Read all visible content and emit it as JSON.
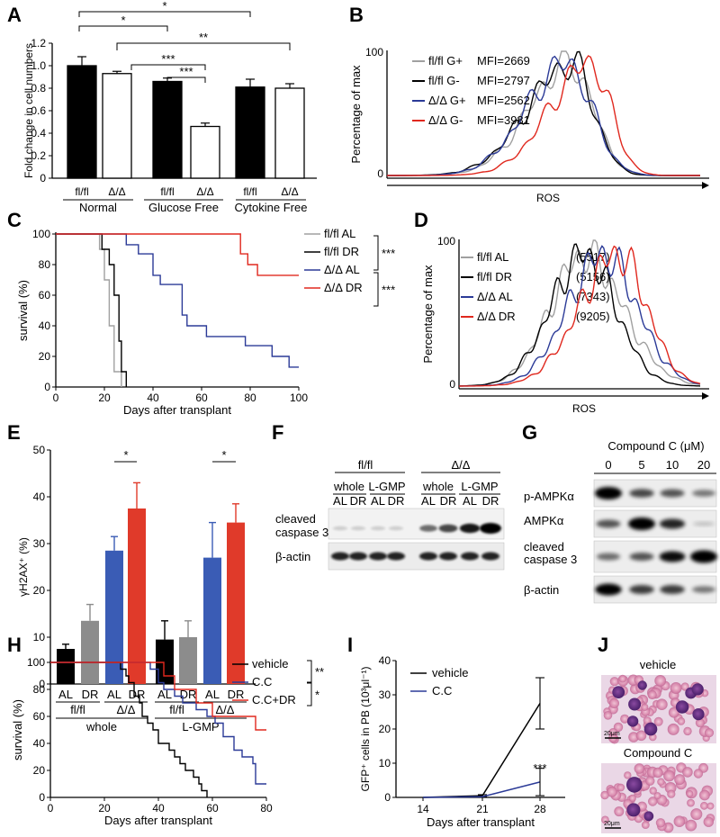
{
  "figure": {
    "panel_labels": [
      "A",
      "B",
      "C",
      "D",
      "E",
      "F",
      "G",
      "H",
      "I",
      "J"
    ]
  },
  "colors": {
    "black": "#000000",
    "gray": "#a0a0a0",
    "blue": "#2b3a97",
    "red": "#e0281e",
    "bar_gray": "#8c8c8c",
    "bar_blue": "#3a5cb5",
    "bar_red": "#e03a2a"
  },
  "chart_data": [
    {
      "id": "A",
      "type": "bar",
      "ylabel": "Fold change in cell numbers",
      "ylim": [
        0,
        1.2
      ],
      "yticks": [
        "0",
        "0.2",
        "0.4",
        "0.6",
        "0.8",
        "1.0",
        "1.2"
      ],
      "categories": [
        "fl/fl",
        "Δ/Δ",
        "fl/fl",
        "Δ/Δ",
        "fl/fl",
        "Δ/Δ"
      ],
      "groups": [
        "Normal",
        "Glucose Free",
        "Cytokine Free"
      ],
      "values": [
        1.0,
        0.93,
        0.86,
        0.46,
        0.81,
        0.8
      ],
      "errors": [
        0.08,
        0.02,
        0.03,
        0.03,
        0.07,
        0.04
      ],
      "fill": [
        "black",
        "white",
        "black",
        "white",
        "black",
        "white"
      ],
      "significance": [
        "*",
        "*",
        "**",
        "***",
        "***"
      ]
    },
    {
      "id": "B",
      "type": "line",
      "ylabel": "Percentage of max",
      "xlabel": "ROS",
      "yticks": [
        "0",
        "100"
      ],
      "series": [
        {
          "name": "fl/fl G+",
          "value": "MFI=2669",
          "color": "gray"
        },
        {
          "name": "fl/fl G-",
          "value": "MFI=2797",
          "color": "black"
        },
        {
          "name": "Δ/Δ G+",
          "value": "MFI=2562",
          "color": "blue"
        },
        {
          "name": "Δ/Δ G-",
          "value": "MFI=3981",
          "color": "red"
        }
      ]
    },
    {
      "id": "C",
      "type": "line",
      "ylabel": "survival (%)",
      "xlabel": "Days after transplant",
      "xlim": [
        0,
        100
      ],
      "ylim": [
        0,
        100
      ],
      "xticks": [
        "0",
        "20",
        "40",
        "60",
        "80",
        "100"
      ],
      "yticks": [
        "0",
        "20",
        "40",
        "60",
        "80",
        "100"
      ],
      "significance": [
        "***",
        "***"
      ],
      "series": [
        {
          "name": "fl/fl AL",
          "color": "gray",
          "steps": [
            [
              0,
              100
            ],
            [
              18,
              100
            ],
            [
              18,
              90
            ],
            [
              20,
              90
            ],
            [
              20,
              70
            ],
            [
              22,
              70
            ],
            [
              22,
              40
            ],
            [
              24,
              40
            ],
            [
              24,
              10
            ],
            [
              27,
              10
            ],
            [
              27,
              0
            ]
          ]
        },
        {
          "name": "fl/fl DR",
          "color": "black",
          "steps": [
            [
              0,
              100
            ],
            [
              19,
              100
            ],
            [
              19,
              90
            ],
            [
              22,
              90
            ],
            [
              22,
              80
            ],
            [
              24,
              80
            ],
            [
              24,
              60
            ],
            [
              26,
              60
            ],
            [
              26,
              30
            ],
            [
              27,
              30
            ],
            [
              27,
              10
            ],
            [
              29,
              10
            ],
            [
              29,
              0
            ]
          ]
        },
        {
          "name": "Δ/Δ AL",
          "color": "blue",
          "steps": [
            [
              0,
              100
            ],
            [
              29,
              100
            ],
            [
              29,
              93
            ],
            [
              34,
              93
            ],
            [
              34,
              87
            ],
            [
              40,
              87
            ],
            [
              40,
              73
            ],
            [
              43,
              73
            ],
            [
              43,
              67
            ],
            [
              52,
              67
            ],
            [
              52,
              47
            ],
            [
              54,
              47
            ],
            [
              54,
              40
            ],
            [
              62,
              40
            ],
            [
              62,
              33
            ],
            [
              78,
              33
            ],
            [
              78,
              27
            ],
            [
              89,
              27
            ],
            [
              89,
              20
            ],
            [
              96,
              20
            ],
            [
              96,
              13
            ],
            [
              100,
              13
            ]
          ]
        },
        {
          "name": "Δ/Δ DR",
          "color": "red",
          "steps": [
            [
              0,
              100
            ],
            [
              76,
              100
            ],
            [
              76,
              87
            ],
            [
              79,
              87
            ],
            [
              79,
              80
            ],
            [
              83,
              80
            ],
            [
              83,
              73
            ],
            [
              100,
              73
            ]
          ]
        }
      ]
    },
    {
      "id": "D",
      "type": "line",
      "ylabel": "Percentage of max",
      "xlabel": "ROS",
      "yticks": [
        "0",
        "100"
      ],
      "series": [
        {
          "name": "fl/fl AL",
          "value": "(5517)",
          "color": "gray"
        },
        {
          "name": "fl/fl DR",
          "value": "(5156)",
          "color": "black"
        },
        {
          "name": "Δ/Δ AL",
          "value": "(7343)",
          "color": "blue"
        },
        {
          "name": "Δ/Δ DR",
          "value": "(9205)",
          "color": "red"
        }
      ]
    },
    {
      "id": "E",
      "type": "bar",
      "ylabel": "γH2AX⁺ (%)",
      "ylim": [
        0,
        50
      ],
      "yticks": [
        "0",
        "10",
        "20",
        "30",
        "40",
        "50"
      ],
      "categories": [
        "AL",
        "DR",
        "AL",
        "DR",
        "AL",
        "DR",
        "AL",
        "DR"
      ],
      "genotypes": [
        "fl/fl",
        "Δ/Δ",
        "fl/fl",
        "Δ/Δ"
      ],
      "groups": [
        "whole",
        "L-GMP"
      ],
      "values": [
        7.5,
        13.5,
        28.5,
        37.5,
        9.5,
        10,
        27,
        34.5
      ],
      "errors": [
        1.0,
        3.5,
        3.0,
        5.5,
        4.0,
        3.5,
        7.5,
        4.0
      ],
      "fill": [
        "black",
        "bar_gray",
        "bar_blue",
        "bar_red",
        "black",
        "bar_gray",
        "bar_blue",
        "bar_red"
      ],
      "significance": [
        "*",
        "*"
      ]
    },
    {
      "id": "H",
      "type": "line",
      "ylabel": "survival (%)",
      "xlabel": "Days after transplant",
      "xlim": [
        0,
        80
      ],
      "ylim": [
        0,
        100
      ],
      "xticks": [
        "0",
        "20",
        "40",
        "60",
        "80"
      ],
      "yticks": [
        "0",
        "20",
        "40",
        "60",
        "80",
        "100"
      ],
      "significance": [
        "**",
        "*"
      ],
      "series": [
        {
          "name": "vehicle",
          "color": "black",
          "steps": [
            [
              0,
              100
            ],
            [
              26,
              100
            ],
            [
              26,
              95
            ],
            [
              28,
              95
            ],
            [
              28,
              90
            ],
            [
              29,
              90
            ],
            [
              29,
              85
            ],
            [
              31,
              85
            ],
            [
              31,
              75
            ],
            [
              33,
              75
            ],
            [
              33,
              70
            ],
            [
              34,
              70
            ],
            [
              34,
              60
            ],
            [
              36,
              60
            ],
            [
              36,
              55
            ],
            [
              38,
              55
            ],
            [
              38,
              50
            ],
            [
              40,
              50
            ],
            [
              40,
              40
            ],
            [
              44,
              40
            ],
            [
              44,
              35
            ],
            [
              46,
              35
            ],
            [
              46,
              30
            ],
            [
              48,
              30
            ],
            [
              48,
              25
            ],
            [
              50,
              25
            ],
            [
              50,
              20
            ],
            [
              53,
              20
            ],
            [
              53,
              15
            ],
            [
              55,
              15
            ],
            [
              55,
              10
            ],
            [
              56,
              10
            ],
            [
              56,
              5
            ],
            [
              58,
              5
            ],
            [
              58,
              0
            ]
          ]
        },
        {
          "name": "C.C",
          "color": "blue",
          "steps": [
            [
              0,
              100
            ],
            [
              37,
              100
            ],
            [
              37,
              95
            ],
            [
              40,
              95
            ],
            [
              40,
              85
            ],
            [
              42,
              85
            ],
            [
              42,
              80
            ],
            [
              46,
              80
            ],
            [
              46,
              75
            ],
            [
              49,
              75
            ],
            [
              49,
              70
            ],
            [
              54,
              70
            ],
            [
              54,
              65
            ],
            [
              58,
              65
            ],
            [
              58,
              60
            ],
            [
              61,
              60
            ],
            [
              61,
              55
            ],
            [
              64,
              55
            ],
            [
              64,
              45
            ],
            [
              68,
              45
            ],
            [
              68,
              35
            ],
            [
              71,
              35
            ],
            [
              71,
              30
            ],
            [
              75,
              30
            ],
            [
              75,
              25
            ],
            [
              76,
              25
            ],
            [
              76,
              10
            ],
            [
              80,
              10
            ]
          ]
        },
        {
          "name": "C.C+DR",
          "color": "red",
          "steps": [
            [
              0,
              100
            ],
            [
              42,
              100
            ],
            [
              42,
              90
            ],
            [
              46,
              90
            ],
            [
              46,
              80
            ],
            [
              54,
              80
            ],
            [
              54,
              70
            ],
            [
              60,
              70
            ],
            [
              60,
              60
            ],
            [
              76,
              60
            ],
            [
              76,
              50
            ],
            [
              80,
              50
            ]
          ]
        }
      ]
    },
    {
      "id": "I",
      "type": "line",
      "ylabel": "GFP⁺ cells in PB (10³μl⁻¹)",
      "xlabel": "Days after transplant",
      "ylim": [
        0,
        40
      ],
      "xticks": [
        "14",
        "21",
        "28"
      ],
      "yticks": [
        "0",
        "10",
        "20",
        "30",
        "40"
      ],
      "significance": [
        "***"
      ],
      "series": [
        {
          "name": "vehicle",
          "color": "black",
          "x": [
            14,
            21,
            28
          ],
          "y": [
            0,
            0.5,
            27.5
          ],
          "err": [
            0,
            0.3,
            7.5
          ]
        },
        {
          "name": "C.C",
          "color": "blue",
          "x": [
            14,
            21,
            28
          ],
          "y": [
            0,
            0.2,
            4.5
          ],
          "err": [
            0,
            0.2,
            4.0
          ]
        }
      ]
    }
  ],
  "blots": {
    "F": {
      "genotypes": [
        "fl/fl",
        "Δ/Δ"
      ],
      "fractions": [
        "whole",
        "L-GMP",
        "whole",
        "L-GMP"
      ],
      "lanes": [
        "AL",
        "DR",
        "AL",
        "DR",
        "AL",
        "DR",
        "AL",
        "DR"
      ],
      "rows": [
        {
          "label1": "cleaved",
          "label2": "caspase 3"
        },
        {
          "label1": "β-actin",
          "label2": ""
        }
      ],
      "caspase_intensity": [
        0.05,
        0.05,
        0.05,
        0.05,
        0.45,
        0.6,
        0.8,
        1.0
      ]
    },
    "G": {
      "title": "Compound C (μM)",
      "doses": [
        "0",
        "5",
        "10",
        "20"
      ],
      "rows": [
        {
          "label1": "p-AMPKα",
          "label2": ""
        },
        {
          "label1": "AMPKα",
          "label2": ""
        },
        {
          "label1": "cleaved",
          "label2": "caspase 3"
        },
        {
          "label1": "β-actin",
          "label2": ""
        }
      ],
      "intensity": [
        [
          1.0,
          0.55,
          0.5,
          0.35
        ],
        [
          0.5,
          1.0,
          0.7,
          0.05
        ],
        [
          0.4,
          0.5,
          0.8,
          1.0
        ],
        [
          0.9,
          0.6,
          0.6,
          0.35
        ]
      ]
    }
  },
  "micrographs": {
    "J": {
      "top_label": "vehicle",
      "bottom_label": "Compound C",
      "scale": "20μm"
    }
  }
}
